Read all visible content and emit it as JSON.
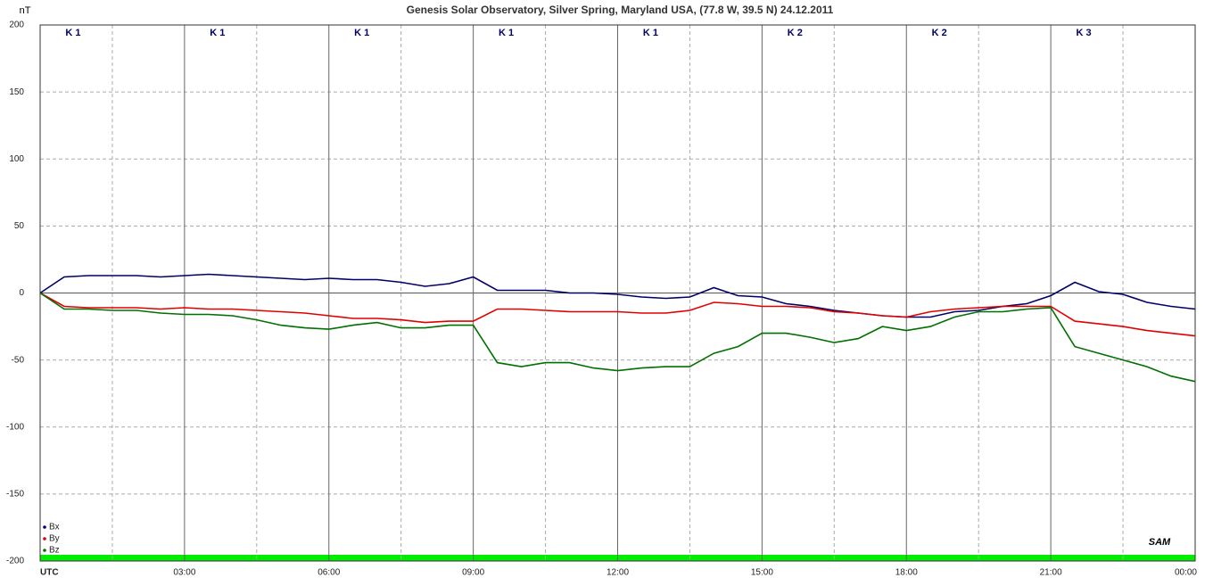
{
  "chart_data": {
    "type": "line",
    "title": "Genesis Solar Observatory, Silver Spring, Maryland USA, (77.8 W, 39.5 N)  24.12.2011",
    "y_label": "nT",
    "logo": "SAM",
    "annotations": [
      "K 1",
      "K 1",
      "K 1",
      "K 1",
      "K 1",
      "K 2",
      "K 2",
      "K 3"
    ],
    "x": [
      0,
      0.5,
      1,
      1.5,
      2,
      2.5,
      3,
      3.5,
      4,
      4.5,
      5,
      5.5,
      6,
      6.5,
      7,
      7.5,
      8,
      8.5,
      9,
      9.5,
      10,
      10.5,
      11,
      11.5,
      12,
      12.5,
      13,
      13.5,
      14,
      14.5,
      15,
      15.5,
      16,
      16.5,
      17,
      17.5,
      18,
      18.5,
      19,
      19.5,
      20,
      20.5,
      21,
      21.5,
      22,
      22.5,
      23,
      23.5,
      24
    ],
    "series": [
      {
        "name": "Bx",
        "color": "#000066",
        "values": [
          0,
          12,
          13,
          13,
          13,
          12,
          13,
          14,
          13,
          12,
          11,
          10,
          11,
          10,
          10,
          8,
          5,
          7,
          12,
          2,
          2,
          2,
          0,
          0,
          -1,
          -3,
          -4,
          -3,
          4,
          -2,
          -3,
          -8,
          -10,
          -13,
          -15,
          -17,
          -18,
          -18,
          -14,
          -13,
          -10,
          -8,
          -2,
          8,
          1,
          -1,
          -7,
          -10,
          -12
        ]
      },
      {
        "name": "By",
        "color": "#e00000",
        "values": [
          0,
          -10,
          -11,
          -11,
          -11,
          -12,
          -11,
          -12,
          -12,
          -13,
          -14,
          -15,
          -17,
          -19,
          -19,
          -20,
          -22,
          -21,
          -21,
          -12,
          -12,
          -13,
          -14,
          -14,
          -14,
          -15,
          -15,
          -13,
          -7,
          -8,
          -10,
          -10,
          -11,
          -14,
          -15,
          -17,
          -18,
          -14,
          -12,
          -11,
          -10,
          -10,
          -10,
          -21,
          -23,
          -25,
          -28,
          -30,
          -32
        ]
      },
      {
        "name": "Bz",
        "color": "#007000",
        "values": [
          0,
          -12,
          -12,
          -13,
          -13,
          -15,
          -16,
          -16,
          -17,
          -20,
          -24,
          -26,
          -27,
          -24,
          -22,
          -26,
          -26,
          -24,
          -24,
          -52,
          -55,
          -52,
          -52,
          -56,
          -58,
          -56,
          -55,
          -55,
          -45,
          -40,
          -30,
          -30,
          -33,
          -37,
          -34,
          -25,
          -28,
          -25,
          -18,
          -14,
          -14,
          -12,
          -11,
          -40,
          -45,
          -50,
          -55,
          -62,
          -66
        ]
      }
    ],
    "xlim": [
      0,
      24
    ],
    "xticks": [
      {
        "value": 0,
        "label": "UTC"
      },
      {
        "value": 3,
        "label": "03:00"
      },
      {
        "value": 6,
        "label": "06:00"
      },
      {
        "value": 9,
        "label": "09:00"
      },
      {
        "value": 12,
        "label": "12:00"
      },
      {
        "value": 15,
        "label": "15:00"
      },
      {
        "value": 18,
        "label": "18:00"
      },
      {
        "value": 21,
        "label": "21:00"
      },
      {
        "value": 24,
        "label": "00:00"
      }
    ],
    "xminor_ticks": [
      1.5,
      4.5,
      7.5,
      10.5,
      13.5,
      16.5,
      19.5,
      22.5
    ],
    "ylim": [
      -200,
      200
    ],
    "yticks": [
      -200,
      -150,
      -100,
      -50,
      0,
      50,
      100,
      150,
      200
    ],
    "grid": true,
    "legend": "bottom-left"
  }
}
